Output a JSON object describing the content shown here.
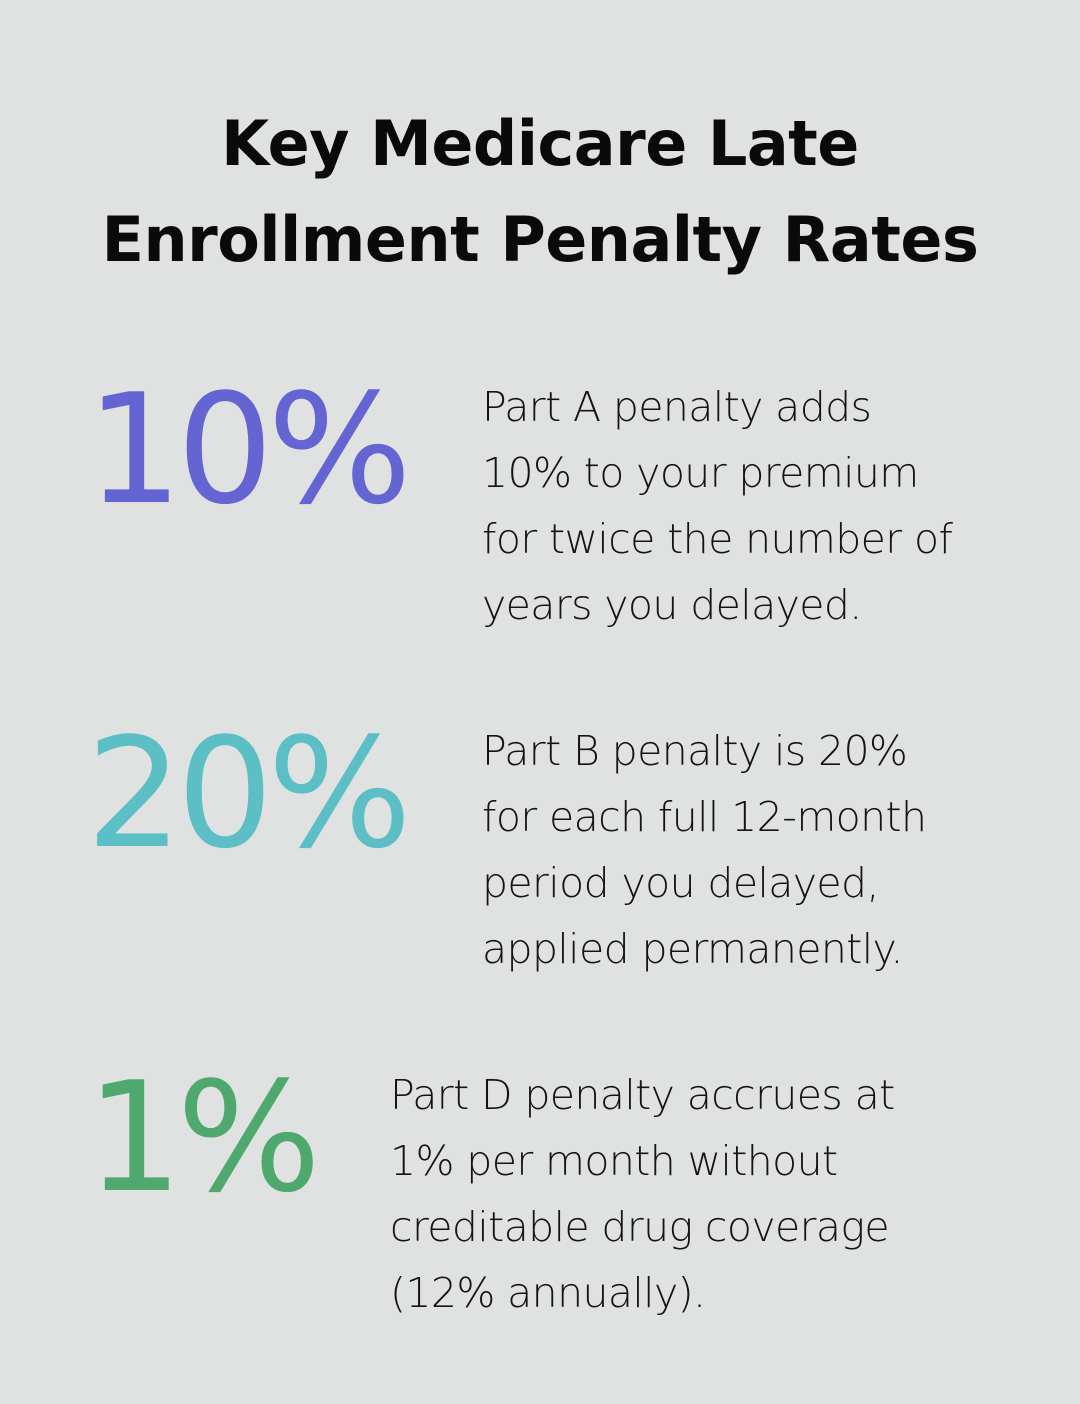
{
  "title": {
    "line1": "Key Medicare Late",
    "line2": "Enrollment Penalty Rates"
  },
  "stats": [
    {
      "value": "10%",
      "color": "#6464d2",
      "lines": [
        "Part A penalty adds",
        "10% to your premium",
        "for twice the number of",
        "years you delayed."
      ]
    },
    {
      "value": "20%",
      "color": "#5cbfc5",
      "lines": [
        "Part B penalty is 20%",
        "for each full 12-month",
        "period you delayed,",
        "applied permanently."
      ]
    },
    {
      "value": "1%",
      "color": "#4fa86d",
      "lines": [
        "Part D penalty accrues at",
        "1% per month without",
        "creditable drug coverage",
        "(12% annually)."
      ]
    }
  ]
}
